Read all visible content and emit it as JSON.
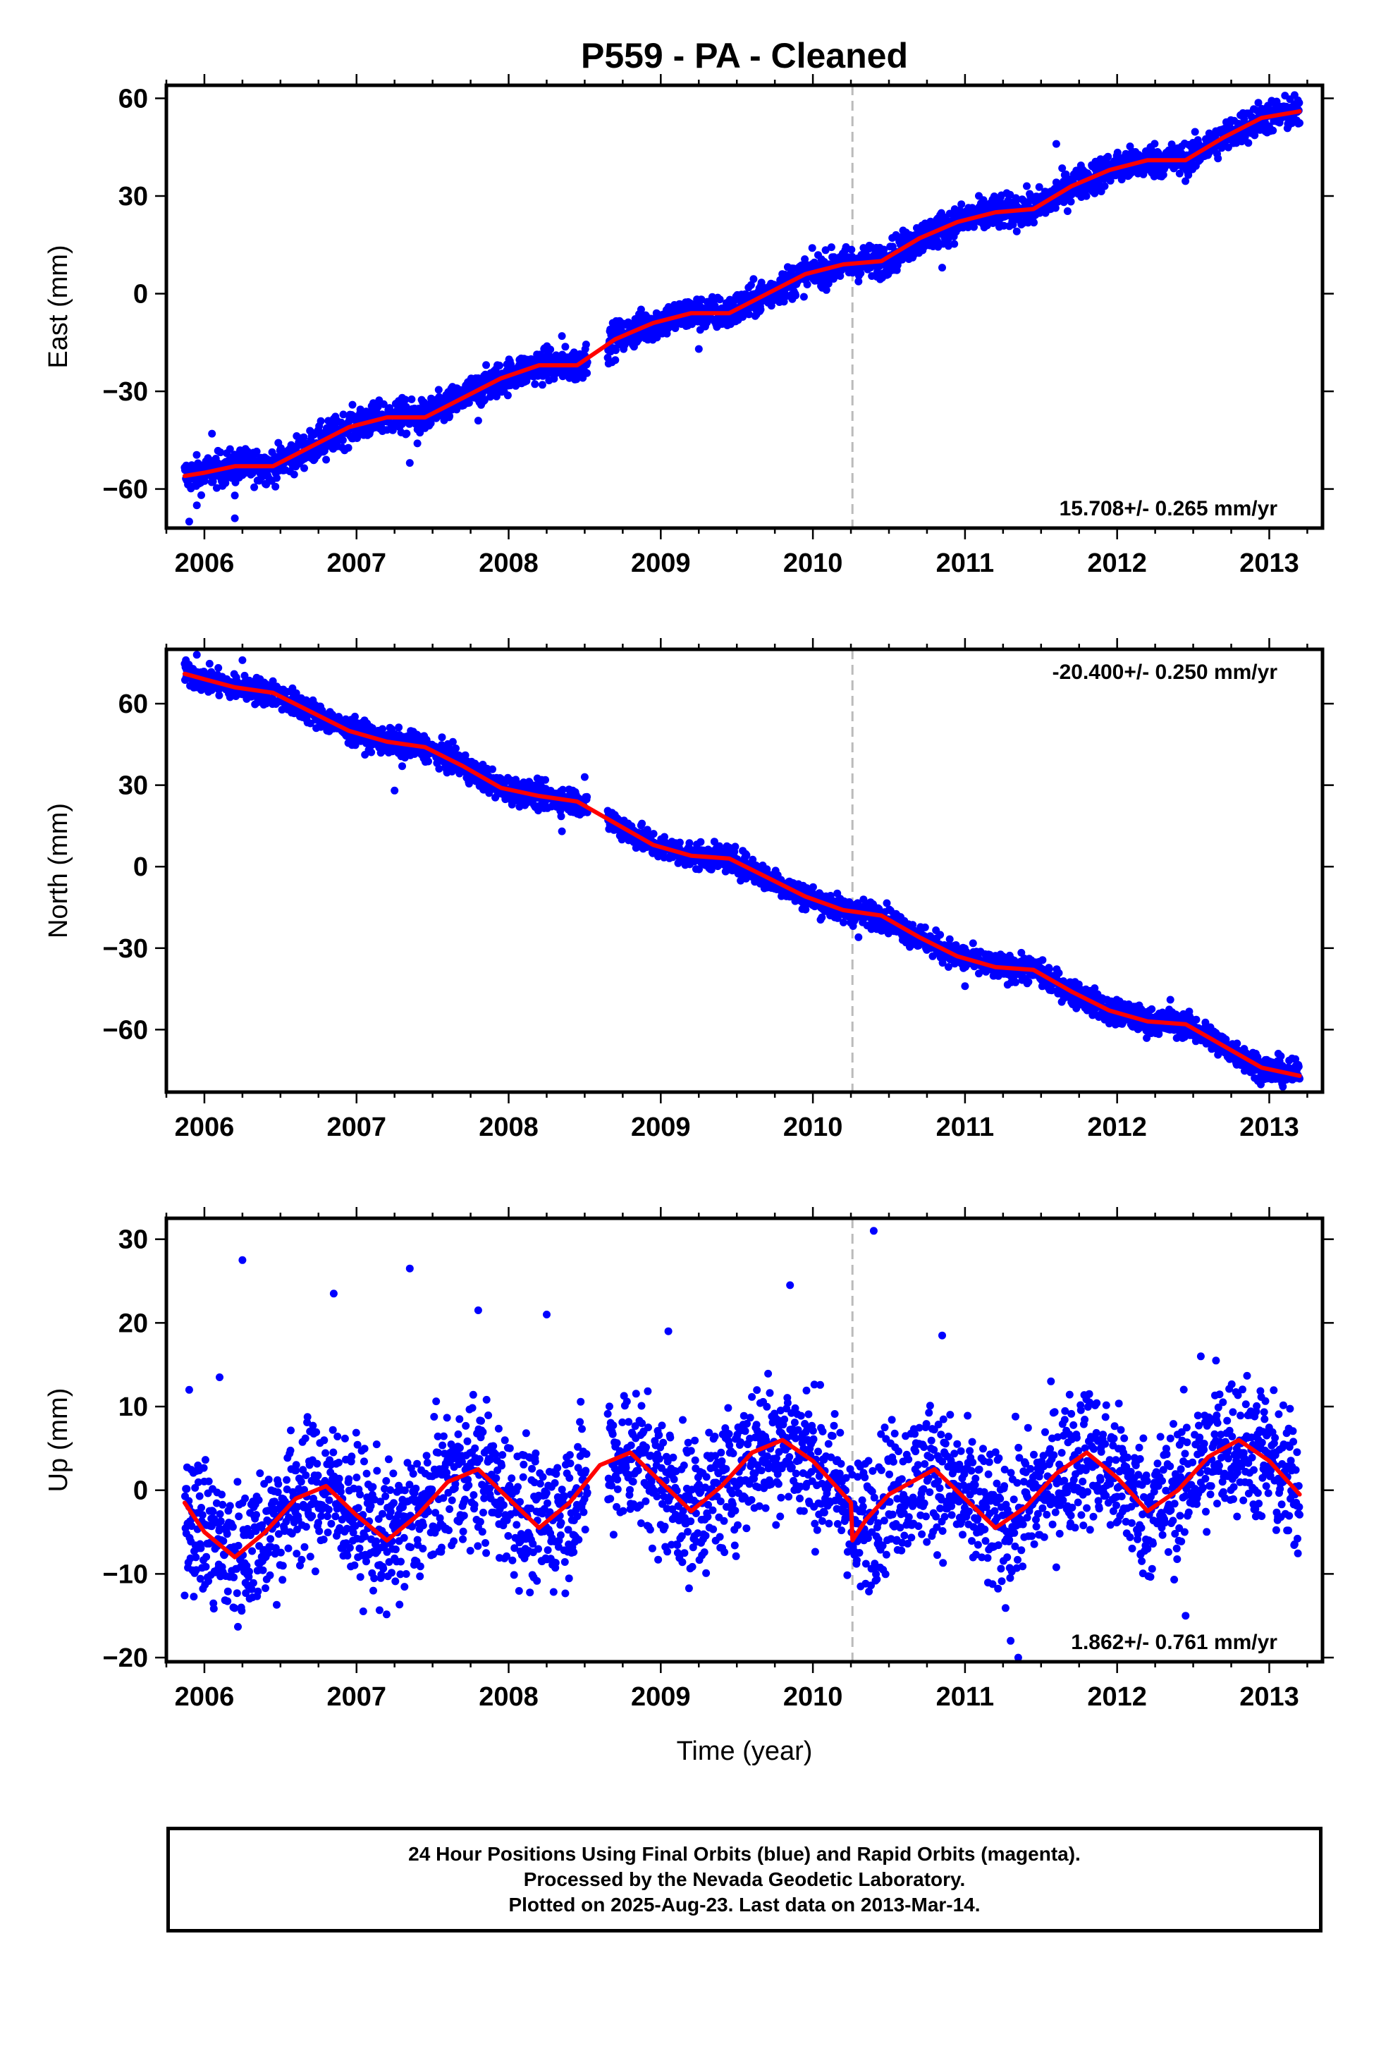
{
  "chart_data": {
    "title": "P559  - PA - Cleaned",
    "xlabel": "Time (year)",
    "xlim": [
      2005.75,
      2013.35
    ],
    "xticks": [
      "2006",
      "2007",
      "2008",
      "2009",
      "2010",
      "2011",
      "2012",
      "2013"
    ],
    "event_line_x": 2010.26,
    "colors": {
      "data": "#0000ff",
      "model": "#ff0000",
      "event": "#bbbbbb"
    },
    "panels": [
      {
        "type": "scatter",
        "ylabel": "East (mm)",
        "ylim": [
          -72,
          64
        ],
        "yticks": [
          "60",
          "30",
          "0",
          "−30",
          "−60"
        ],
        "rate_label": "15.708+/- 0.265 mm/yr",
        "rate_position": "bottom-right",
        "model_line": [
          [
            2005.87,
            -56
          ],
          [
            2006.0,
            -55
          ],
          [
            2006.2,
            -53
          ],
          [
            2006.45,
            -53
          ],
          [
            2006.7,
            -47
          ],
          [
            2006.95,
            -41
          ],
          [
            2007.2,
            -38
          ],
          [
            2007.45,
            -38
          ],
          [
            2007.7,
            -32
          ],
          [
            2007.95,
            -26
          ],
          [
            2008.2,
            -22
          ],
          [
            2008.45,
            -22
          ],
          [
            2008.7,
            -14
          ],
          [
            2008.95,
            -9
          ],
          [
            2009.2,
            -6
          ],
          [
            2009.45,
            -6
          ],
          [
            2009.7,
            0
          ],
          [
            2009.95,
            6
          ],
          [
            2010.2,
            9
          ],
          [
            2010.45,
            10
          ],
          [
            2010.7,
            17
          ],
          [
            2010.95,
            22
          ],
          [
            2011.2,
            25
          ],
          [
            2011.45,
            26
          ],
          [
            2011.7,
            33
          ],
          [
            2011.95,
            38
          ],
          [
            2012.2,
            41
          ],
          [
            2012.45,
            41
          ],
          [
            2012.7,
            48
          ],
          [
            2012.95,
            54
          ],
          [
            2013.2,
            56
          ]
        ],
        "scatter_spread": 2.6,
        "outliers": [
          [
            2005.9,
            -70
          ],
          [
            2005.95,
            -65
          ],
          [
            2006.05,
            -43
          ],
          [
            2006.2,
            -69
          ],
          [
            2006.2,
            -62
          ],
          [
            2006.8,
            -51
          ],
          [
            2007.3,
            -32
          ],
          [
            2007.35,
            -52
          ],
          [
            2007.4,
            -46
          ],
          [
            2007.8,
            -39
          ],
          [
            2008.35,
            -13
          ],
          [
            2008.5,
            -21
          ],
          [
            2009.25,
            -17
          ],
          [
            2010.85,
            8
          ],
          [
            2011.6,
            46
          ]
        ]
      },
      {
        "type": "scatter",
        "ylabel": "North (mm)",
        "ylim": [
          -83,
          80
        ],
        "yticks": [
          "60",
          "30",
          "0",
          "−30",
          "−60"
        ],
        "rate_label": "-20.400+/- 0.250 mm/yr",
        "rate_position": "top-right",
        "model_line": [
          [
            2005.87,
            71
          ],
          [
            2006.0,
            69
          ],
          [
            2006.2,
            66
          ],
          [
            2006.45,
            64
          ],
          [
            2006.7,
            57
          ],
          [
            2006.95,
            50
          ],
          [
            2007.2,
            46
          ],
          [
            2007.45,
            44
          ],
          [
            2007.7,
            37
          ],
          [
            2007.95,
            29
          ],
          [
            2008.2,
            26
          ],
          [
            2008.45,
            24
          ],
          [
            2008.7,
            16
          ],
          [
            2008.95,
            8
          ],
          [
            2009.2,
            4
          ],
          [
            2009.45,
            3
          ],
          [
            2009.7,
            -4
          ],
          [
            2009.95,
            -11
          ],
          [
            2010.2,
            -16
          ],
          [
            2010.45,
            -18
          ],
          [
            2010.7,
            -26
          ],
          [
            2010.95,
            -33
          ],
          [
            2011.2,
            -37
          ],
          [
            2011.45,
            -38
          ],
          [
            2011.7,
            -46
          ],
          [
            2011.95,
            -53
          ],
          [
            2012.2,
            -57
          ],
          [
            2012.45,
            -58
          ],
          [
            2012.7,
            -66
          ],
          [
            2012.95,
            -74
          ],
          [
            2013.2,
            -77
          ]
        ],
        "scatter_spread": 2.4,
        "outliers": [
          [
            2005.95,
            78
          ],
          [
            2006.25,
            76
          ],
          [
            2007.25,
            28
          ],
          [
            2007.3,
            37
          ],
          [
            2008.35,
            13
          ],
          [
            2008.5,
            33
          ],
          [
            2010.3,
            -26
          ],
          [
            2011.0,
            -44
          ],
          [
            2012.35,
            -49
          ]
        ]
      },
      {
        "type": "scatter",
        "ylabel": "Up (mm)",
        "ylim": [
          -20.5,
          32.5
        ],
        "yticks": [
          "30",
          "20",
          "10",
          "0",
          "−10",
          "−20"
        ],
        "rate_label": "1.862+/- 0.761 mm/yr",
        "rate_position": "bottom-right",
        "model_line": [
          [
            2005.87,
            -1.5
          ],
          [
            2006.0,
            -5
          ],
          [
            2006.2,
            -8
          ],
          [
            2006.4,
            -5
          ],
          [
            2006.6,
            -1
          ],
          [
            2006.8,
            0.5
          ],
          [
            2007.0,
            -3
          ],
          [
            2007.2,
            -6
          ],
          [
            2007.4,
            -3
          ],
          [
            2007.6,
            1
          ],
          [
            2007.8,
            2.5
          ],
          [
            2008.0,
            -1
          ],
          [
            2008.2,
            -4.5
          ],
          [
            2008.4,
            -1.5
          ],
          [
            2008.6,
            3
          ],
          [
            2008.8,
            4.5
          ],
          [
            2009.0,
            1
          ],
          [
            2009.2,
            -2.5
          ],
          [
            2009.4,
            0.5
          ],
          [
            2009.6,
            4.5
          ],
          [
            2009.8,
            6
          ],
          [
            2010.0,
            3.5
          ],
          [
            2010.2,
            -0.5
          ],
          [
            2010.25,
            -1.5
          ],
          [
            2010.26,
            -6
          ],
          [
            2010.35,
            -3.5
          ],
          [
            2010.5,
            -0.5
          ],
          [
            2010.8,
            2.5
          ],
          [
            2011.0,
            -1
          ],
          [
            2011.2,
            -4.5
          ],
          [
            2011.4,
            -2
          ],
          [
            2011.6,
            2
          ],
          [
            2011.8,
            4.5
          ],
          [
            2012.0,
            1.5
          ],
          [
            2012.2,
            -2.5
          ],
          [
            2012.4,
            0
          ],
          [
            2012.6,
            4
          ],
          [
            2012.8,
            6
          ],
          [
            2013.0,
            3.5
          ],
          [
            2013.2,
            -0.5
          ]
        ],
        "scatter_spread": 4.2,
        "outliers": [
          [
            2005.9,
            12
          ],
          [
            2006.1,
            13.5
          ],
          [
            2006.25,
            27.5
          ],
          [
            2006.85,
            23.5
          ],
          [
            2007.35,
            26.5
          ],
          [
            2007.8,
            21.5
          ],
          [
            2008.25,
            21
          ],
          [
            2009.05,
            19
          ],
          [
            2009.85,
            24.5
          ],
          [
            2010.4,
            31
          ],
          [
            2010.85,
            18.5
          ],
          [
            2011.3,
            -18
          ],
          [
            2011.35,
            -20
          ],
          [
            2012.55,
            16
          ],
          [
            2012.65,
            15.5
          ],
          [
            2012.45,
            -15
          ]
        ]
      }
    ]
  },
  "footer": {
    "lines": [
      "24 Hour Positions Using Final Orbits (blue) and Rapid Orbits (magenta).",
      "Processed by the Nevada Geodetic Laboratory.",
      "Plotted on 2025-Aug-23. Last data on 2013-Mar-14."
    ]
  }
}
